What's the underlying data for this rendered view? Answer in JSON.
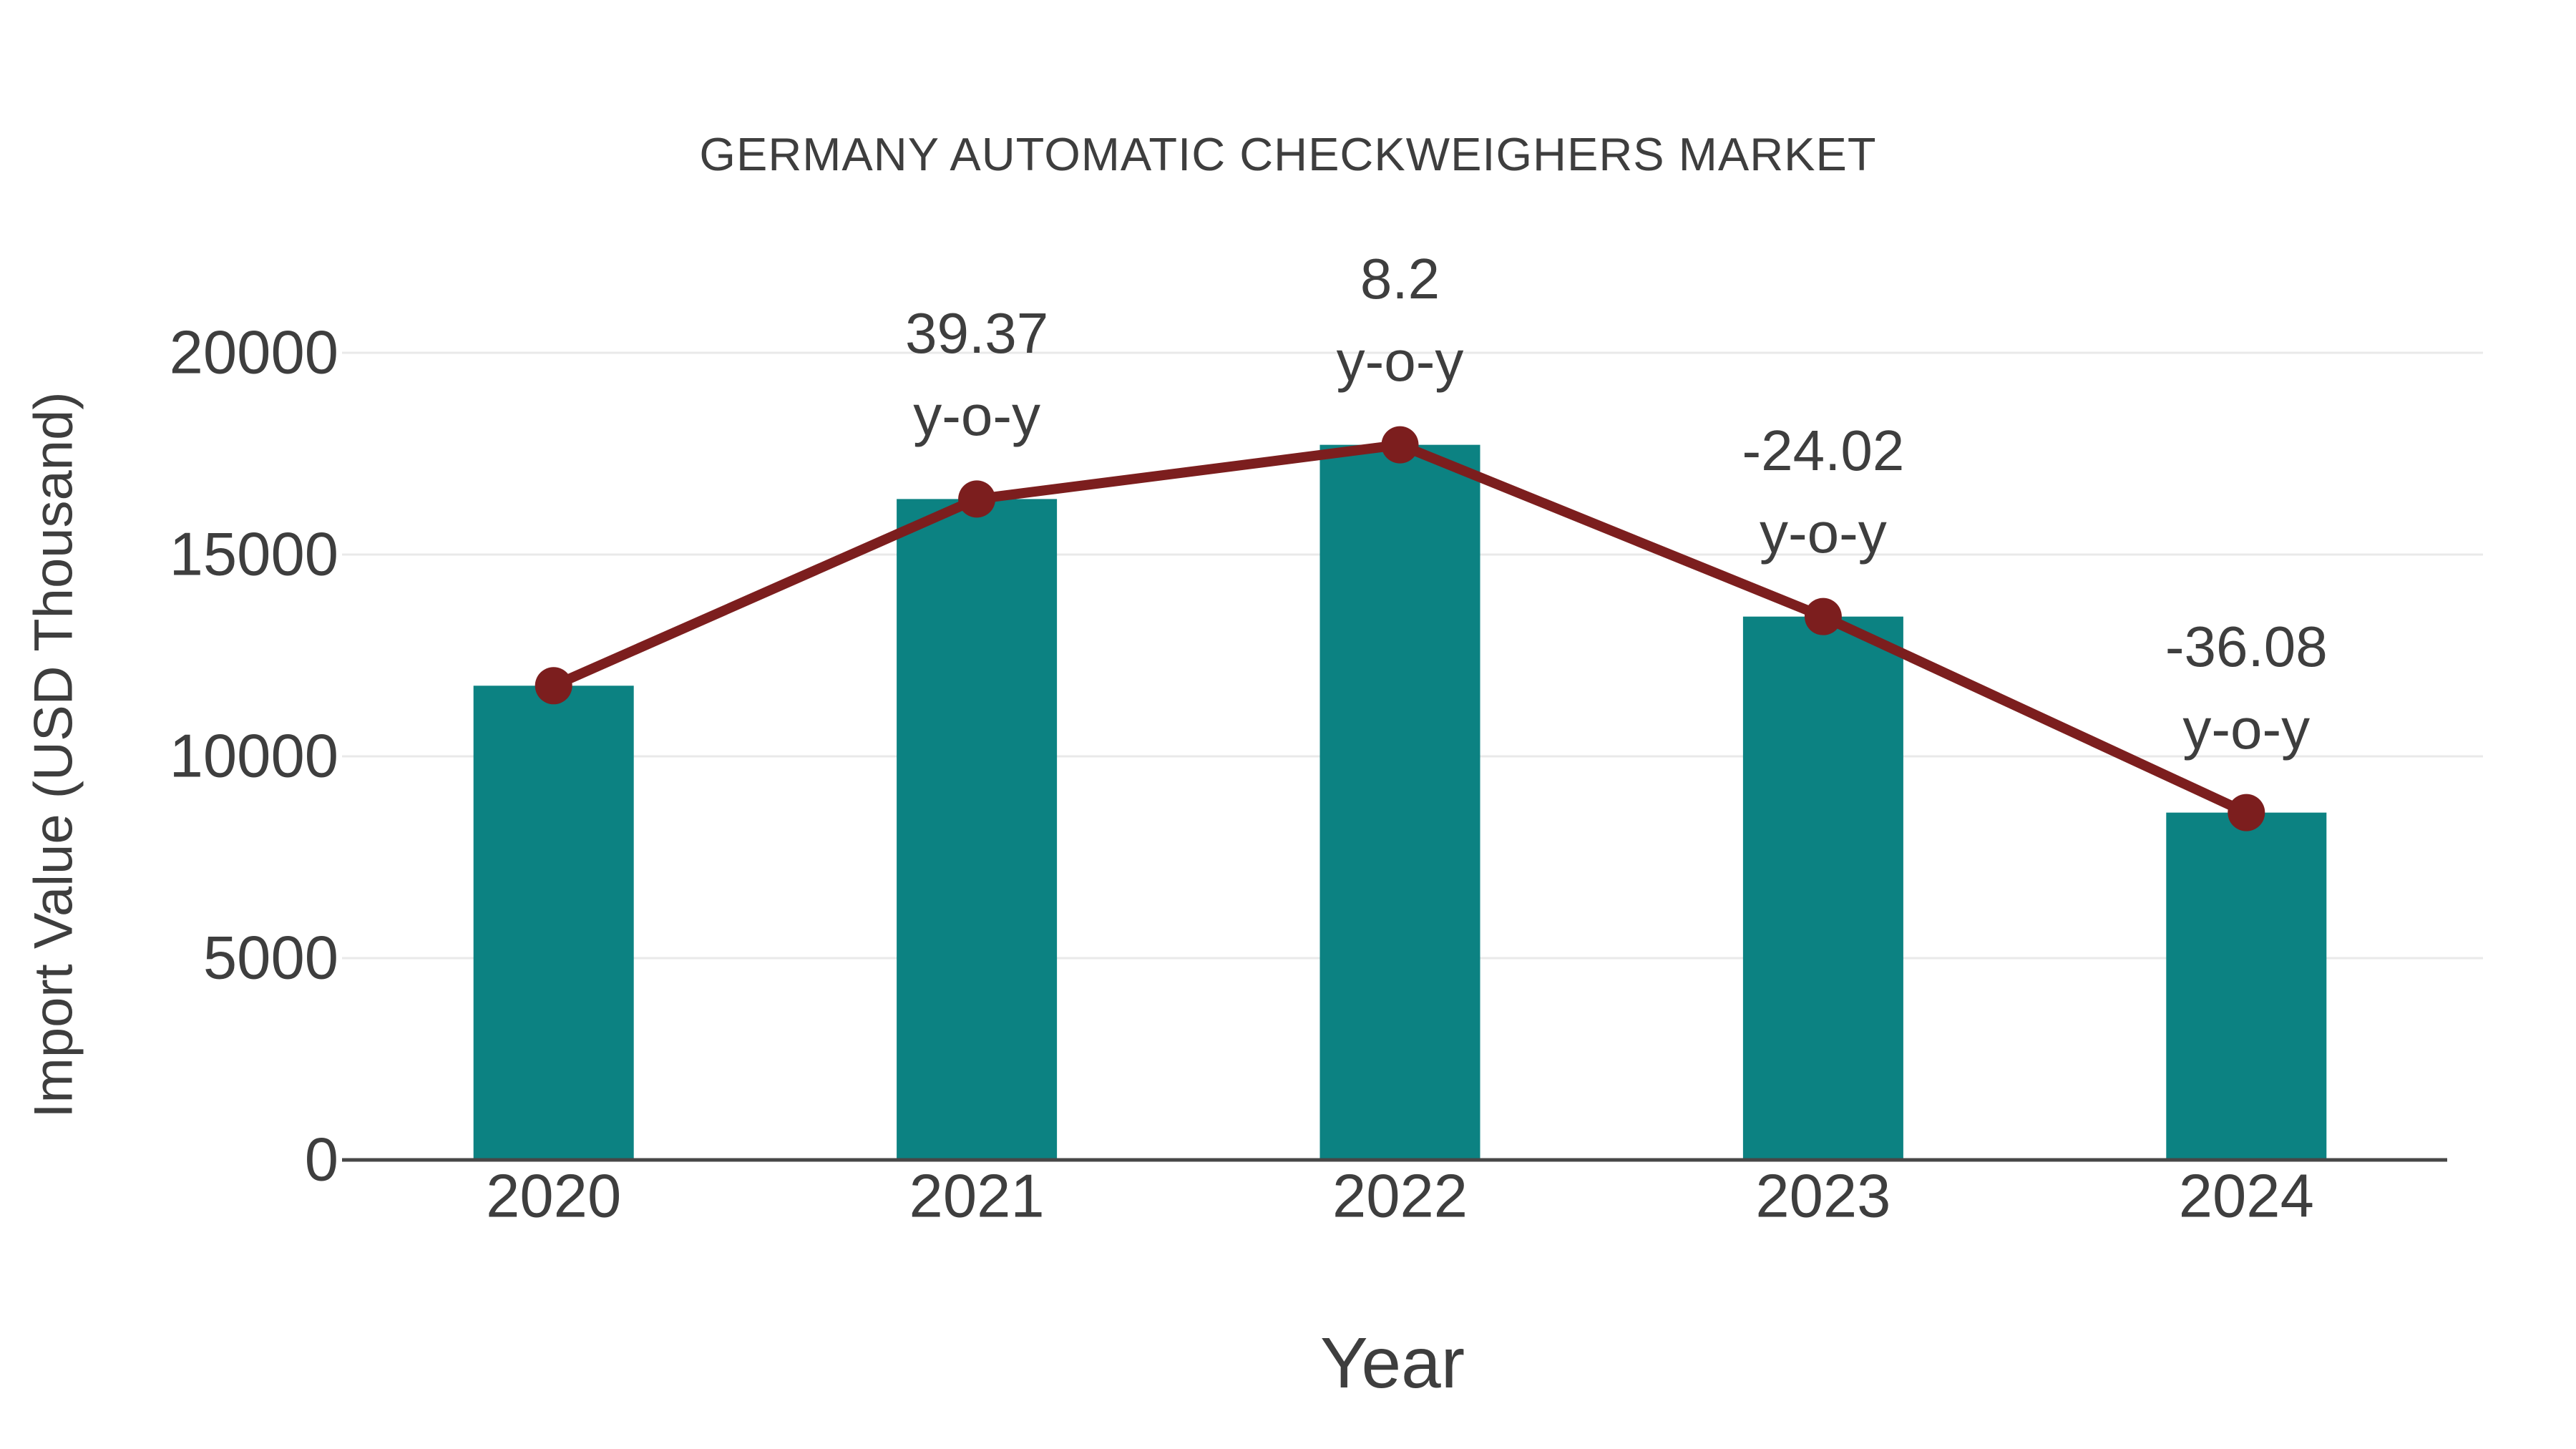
{
  "chart_data": {
    "type": "bar",
    "title": "GERMANY AUTOMATIC CHECKWEIGHERS MARKET",
    "xlabel": "Year",
    "ylabel": "Import Value (USD Thousand)",
    "categories": [
      "2020",
      "2021",
      "2022",
      "2023",
      "2024"
    ],
    "series": [
      {
        "name": "Import Value (USD Thousand)",
        "type": "bar",
        "values": [
          11750,
          16376,
          17719,
          13463,
          8606
        ]
      },
      {
        "name": "y-o-y",
        "type": "line",
        "plotted_at_bar_values": true,
        "yoy_percent": [
          null,
          39.37,
          8.2,
          -24.02,
          -36.08
        ]
      }
    ],
    "annotations": [
      {
        "category": "2021",
        "line1": "39.37",
        "line2": "y-o-y"
      },
      {
        "category": "2022",
        "line1": "8.2",
        "line2": "y-o-y"
      },
      {
        "category": "2023",
        "line1": "-24.02",
        "line2": "y-o-y"
      },
      {
        "category": "2024",
        "line1": "-36.08",
        "line2": "y-o-y"
      }
    ],
    "y_ticks": [
      0,
      5000,
      10000,
      15000,
      20000
    ],
    "ylim": [
      0,
      20000
    ],
    "grid": true,
    "legend_position": "none",
    "colors": {
      "bar": "#0c8282",
      "line": "#7c1e1e",
      "marker": "#7c1e1e",
      "text": "#3e3e3e",
      "grid": "#e9e9e9",
      "axis": "#474747",
      "background": "#ffffff"
    }
  }
}
